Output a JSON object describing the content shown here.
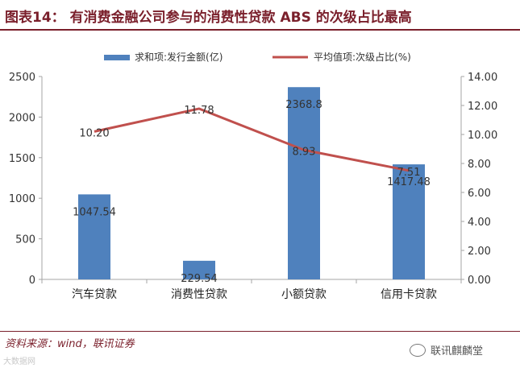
{
  "header": {
    "title": "图表14：  有消费金融公司参与的消费性贷款 ABS 的次级占比最高"
  },
  "footer": {
    "source": "资料来源：wind，联讯证券",
    "watermark_left": "大数据网",
    "watermark_right": "联讯麒麟堂"
  },
  "colors": {
    "bar": "#4f81bd",
    "line": "#c0504d",
    "title": "#7a1f2b"
  },
  "chart_data": {
    "type": "bar",
    "categories": [
      "汽车贷款",
      "消费性贷款",
      "小额贷款",
      "信用卡贷款"
    ],
    "series": [
      {
        "name": "求和项:发行金额(亿)",
        "type": "bar",
        "axis": "left",
        "values": [
          1047.54,
          229.54,
          2368.8,
          1417.48
        ],
        "labels": [
          "1047.54",
          "229.54",
          "2368.8",
          "1417.48"
        ]
      },
      {
        "name": "平均值项:次级占比(%)",
        "type": "line",
        "axis": "right",
        "values": [
          10.2,
          11.78,
          8.93,
          7.51
        ],
        "labels": [
          "10.20",
          "11.78",
          "8.93",
          "7.51"
        ]
      }
    ],
    "y_left": {
      "ylim": [
        0,
        2500
      ],
      "ticks": [
        "0",
        "500",
        "1000",
        "1500",
        "2000",
        "2500"
      ]
    },
    "y_right": {
      "ylim": [
        0,
        14
      ],
      "ticks": [
        "0.00",
        "2.00",
        "4.00",
        "6.00",
        "8.00",
        "10.00",
        "12.00",
        "14.00"
      ]
    },
    "legend": "top-center",
    "grid": false
  }
}
